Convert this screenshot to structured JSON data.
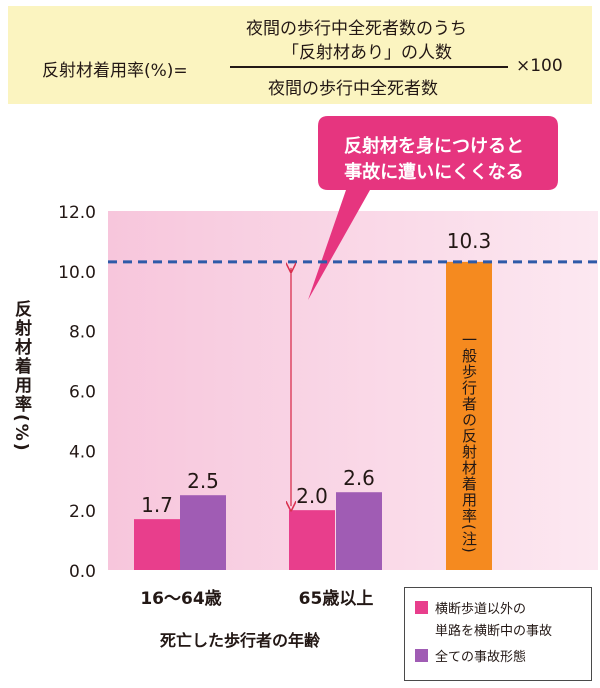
{
  "formula": {
    "lhs": "反射材着用率(%)=",
    "numerator_line1": "夜間の歩行中全死者数のうち",
    "numerator_line2": "「反射材あり」の人数",
    "denominator": "夜間の歩行中全死者数",
    "multiplier": "×100"
  },
  "callout": {
    "line1": "反射材を身につけると",
    "line2": "事故に遭いにくくなる"
  },
  "colors": {
    "pink": "#e83e8c",
    "purple": "#a05cb4",
    "orange": "#f58a1f",
    "dashed": "#2e5aa8",
    "arrow": "#d9304f",
    "plot_bg": "#fce4ef",
    "callout": "#e6357f"
  },
  "chart_data": {
    "type": "bar",
    "categories": [
      "16〜64歳",
      "65歳以上",
      ""
    ],
    "series": [
      {
        "name": "横断歩道以外の単路を横断中の事故",
        "values": [
          1.7,
          2.0,
          null
        ]
      },
      {
        "name": "全ての事故形態",
        "values": [
          2.5,
          2.6,
          null
        ]
      },
      {
        "name": "一般歩行者の反射材着用率(注)",
        "values": [
          null,
          null,
          10.3
        ]
      }
    ],
    "data_labels": [
      "1.7",
      "2.5",
      "2.0",
      "2.6",
      "10.3"
    ],
    "reference_line": 10.3,
    "ylim": [
      0,
      12
    ],
    "yticks": [
      "0.0",
      "2.0",
      "4.0",
      "6.0",
      "8.0",
      "10.0",
      "12.0"
    ],
    "ylabel": "反射材着用率(%)",
    "xlabel": "死亡した歩行者の年齢",
    "orange_bar_label": "一般歩行者の反射材着用率(注)",
    "legend": [
      {
        "label_line1": "横断歩道以外の",
        "label_line2": "単路を横断中の事故"
      },
      {
        "label_line1": "全ての事故形態",
        "label_line2": ""
      }
    ],
    "legend_position": "bottom-right",
    "grid": false
  }
}
